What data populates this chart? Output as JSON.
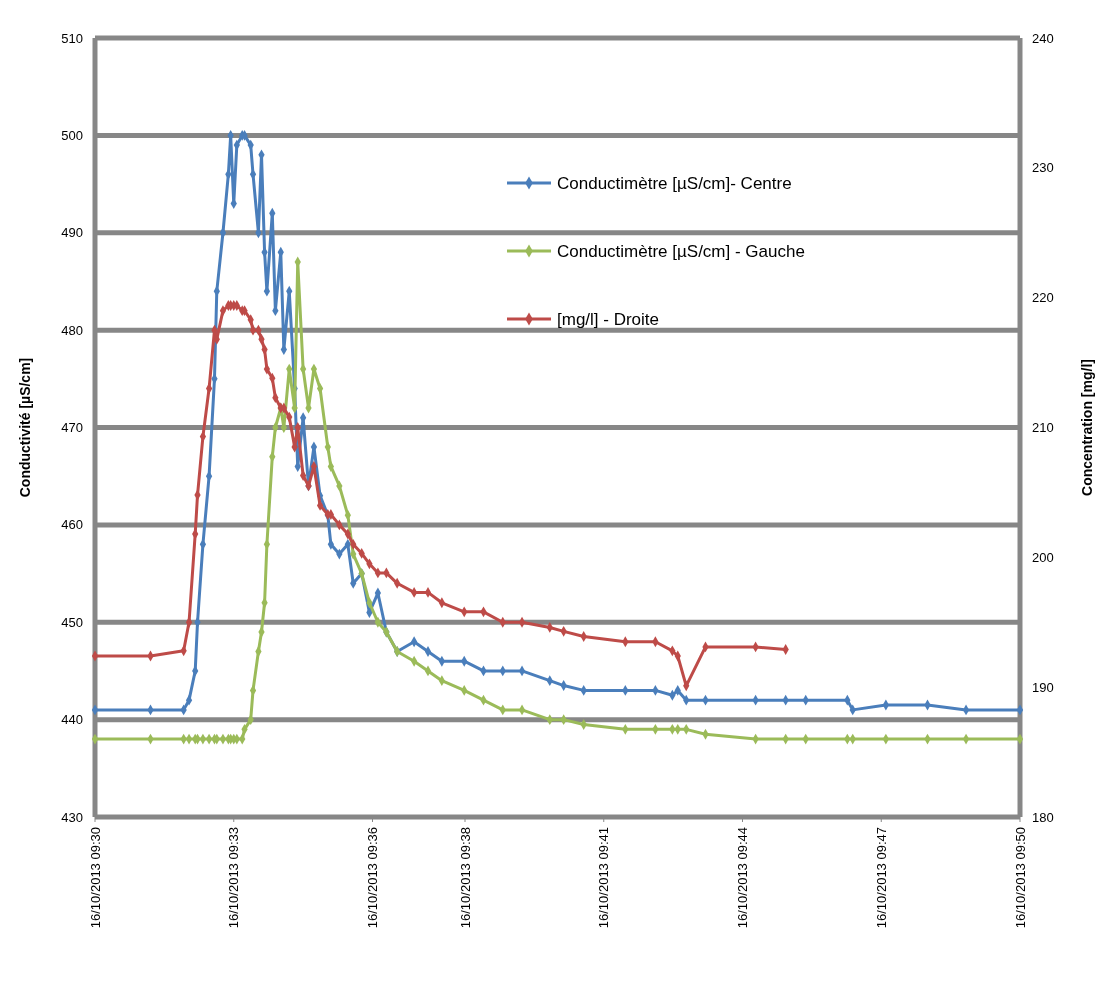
{
  "chart_data": {
    "type": "line",
    "ylabel": "Conductivité [µS/cm]",
    "y2label": "Concentration [mg/l]",
    "x": [
      "2013-10-16T09:30:00",
      "2013-10-16T09:31:12",
      "2013-10-16T09:31:55",
      "2013-10-16T09:32:02",
      "2013-10-16T09:32:10",
      "2013-10-16T09:32:13",
      "2013-10-16T09:32:20",
      "2013-10-16T09:32:28",
      "2013-10-16T09:32:35",
      "2013-10-16T09:32:38",
      "2013-10-16T09:32:46",
      "2013-10-16T09:32:53",
      "2013-10-16T09:32:56",
      "2013-10-16T09:33:00",
      "2013-10-16T09:33:04",
      "2013-10-16T09:33:11",
      "2013-10-16T09:33:14",
      "2013-10-16T09:33:22",
      "2013-10-16T09:33:25",
      "2013-10-16T09:33:32",
      "2013-10-16T09:33:36",
      "2013-10-16T09:33:40",
      "2013-10-16T09:33:43",
      "2013-10-16T09:33:50",
      "2013-10-16T09:33:54",
      "2013-10-16T09:34:01",
      "2013-10-16T09:34:05",
      "2013-10-16T09:34:12",
      "2013-10-16T09:34:19",
      "2013-10-16T09:34:23",
      "2013-10-16T09:34:30",
      "2013-10-16T09:34:37",
      "2013-10-16T09:34:44",
      "2013-10-16T09:34:52",
      "2013-10-16T09:35:02",
      "2013-10-16T09:35:06",
      "2013-10-16T09:35:17",
      "2013-10-16T09:35:28",
      "2013-10-16T09:35:35",
      "2013-10-16T09:35:46",
      "2013-10-16T09:35:56",
      "2013-10-16T09:36:07",
      "2013-10-16T09:36:18",
      "2013-10-16T09:36:32",
      "2013-10-16T09:36:54",
      "2013-10-16T09:37:12",
      "2013-10-16T09:37:30",
      "2013-10-16T09:37:59",
      "2013-10-16T09:38:24",
      "2013-10-16T09:38:49",
      "2013-10-16T09:39:14",
      "2013-10-16T09:39:50",
      "2013-10-16T09:40:08",
      "2013-10-16T09:40:34",
      "2013-10-16T09:41:28",
      "2013-10-16T09:42:07",
      "2013-10-16T09:42:29",
      "2013-10-16T09:42:36",
      "2013-10-16T09:42:47",
      "2013-10-16T09:43:12",
      "2013-10-16T09:44:17",
      "2013-10-16T09:44:56",
      "2013-10-16T09:45:22",
      "2013-10-16T09:46:16",
      "2013-10-16T09:46:23",
      "2013-10-16T09:47:06",
      "2013-10-16T09:48:00",
      "2013-10-16T09:48:50",
      "2013-10-16T09:50:00"
    ],
    "xlim": [
      "2013-10-16T09:30",
      "2013-10-16T09:50"
    ],
    "xticks": [
      {
        "value": "2013-10-16T09:30",
        "label": "16/10/2013 09:30"
      },
      {
        "value": "2013-10-16T09:33",
        "label": "16/10/2013 09:33"
      },
      {
        "value": "2013-10-16T09:36",
        "label": "16/10/2013 09:36"
      },
      {
        "value": "2013-10-16T09:38",
        "label": "16/10/2013 09:38"
      },
      {
        "value": "2013-10-16T09:41",
        "label": "16/10/2013 09:41"
      },
      {
        "value": "2013-10-16T09:44",
        "label": "16/10/2013 09:44"
      },
      {
        "value": "2013-10-16T09:47",
        "label": "16/10/2013 09:47"
      },
      {
        "value": "2013-10-16T09:50",
        "label": "16/10/2013 09:50"
      }
    ],
    "ylim": [
      430,
      510
    ],
    "yticks": [
      430,
      440,
      450,
      460,
      470,
      480,
      490,
      500,
      510
    ],
    "y2lim": [
      180,
      240
    ],
    "y2ticks": [
      180,
      190,
      200,
      210,
      220,
      230,
      240
    ],
    "grid": "y",
    "legend": "top right",
    "marker": "diamond",
    "line_style": "solid",
    "series": [
      {
        "name": "Conductimètre [µS/cm]- Centre",
        "color": "#4a7ebb",
        "values": [
          441,
          441,
          441,
          442,
          445,
          450,
          458,
          465,
          475,
          484,
          490,
          496,
          500,
          493,
          499,
          500,
          500,
          499,
          496,
          490,
          498,
          488,
          484,
          492,
          482,
          488,
          478,
          484,
          474,
          466,
          471,
          464,
          468,
          463,
          461,
          458,
          457,
          458,
          454,
          455,
          451,
          453,
          449,
          447,
          448,
          447,
          446,
          446,
          445,
          445,
          445,
          444,
          443.5,
          443,
          443,
          443,
          442.5,
          443,
          442,
          442,
          442,
          442,
          442,
          442,
          441,
          441.5,
          441.5,
          441,
          441
        ]
      },
      {
        "name": "Conductimètre [µS/cm] - Gauche",
        "color": "#9bbb59",
        "values": [
          438,
          438,
          438,
          438,
          438,
          438,
          438,
          438,
          438,
          438,
          438,
          438,
          438,
          438,
          438,
          438,
          439,
          440,
          443,
          447,
          449,
          452,
          458,
          467,
          470,
          472,
          470,
          476,
          472,
          487,
          476,
          472,
          476,
          474,
          468,
          466,
          464,
          461,
          457,
          455,
          452,
          450,
          449,
          447,
          446,
          445,
          444,
          443,
          442,
          441,
          441,
          440,
          440,
          439.5,
          439,
          439,
          439,
          439,
          439,
          438.5,
          438,
          438,
          438,
          438,
          438,
          438,
          438,
          438,
          438
        ]
      },
      {
        "name": "[mg/l] - Droite",
        "color": "#be4b48",
        "axis": "y2",
        "values": [
          192.4,
          192.4,
          192.8,
          195,
          201.8,
          204.8,
          209.3,
          213,
          217.5,
          216.8,
          219,
          219.4,
          219.4,
          219.4,
          219.4,
          219,
          219,
          218.3,
          217.5,
          217.5,
          216.8,
          216,
          214.5,
          213.8,
          212.3,
          211.5,
          211.5,
          210.8,
          208.5,
          210,
          206.3,
          205.5,
          207,
          204,
          203.3,
          203.3,
          202.5,
          201.8,
          201,
          200.3,
          199.5,
          198.8,
          198.8,
          198,
          197.3,
          197.3,
          196.5,
          195.8,
          195.8,
          195,
          195,
          194.6,
          194.3,
          193.9,
          193.5,
          193.5,
          192.8,
          192.4,
          190.1,
          193.1,
          193.1,
          192.9,
          null,
          null,
          null,
          null,
          null,
          null,
          null
        ]
      }
    ]
  }
}
